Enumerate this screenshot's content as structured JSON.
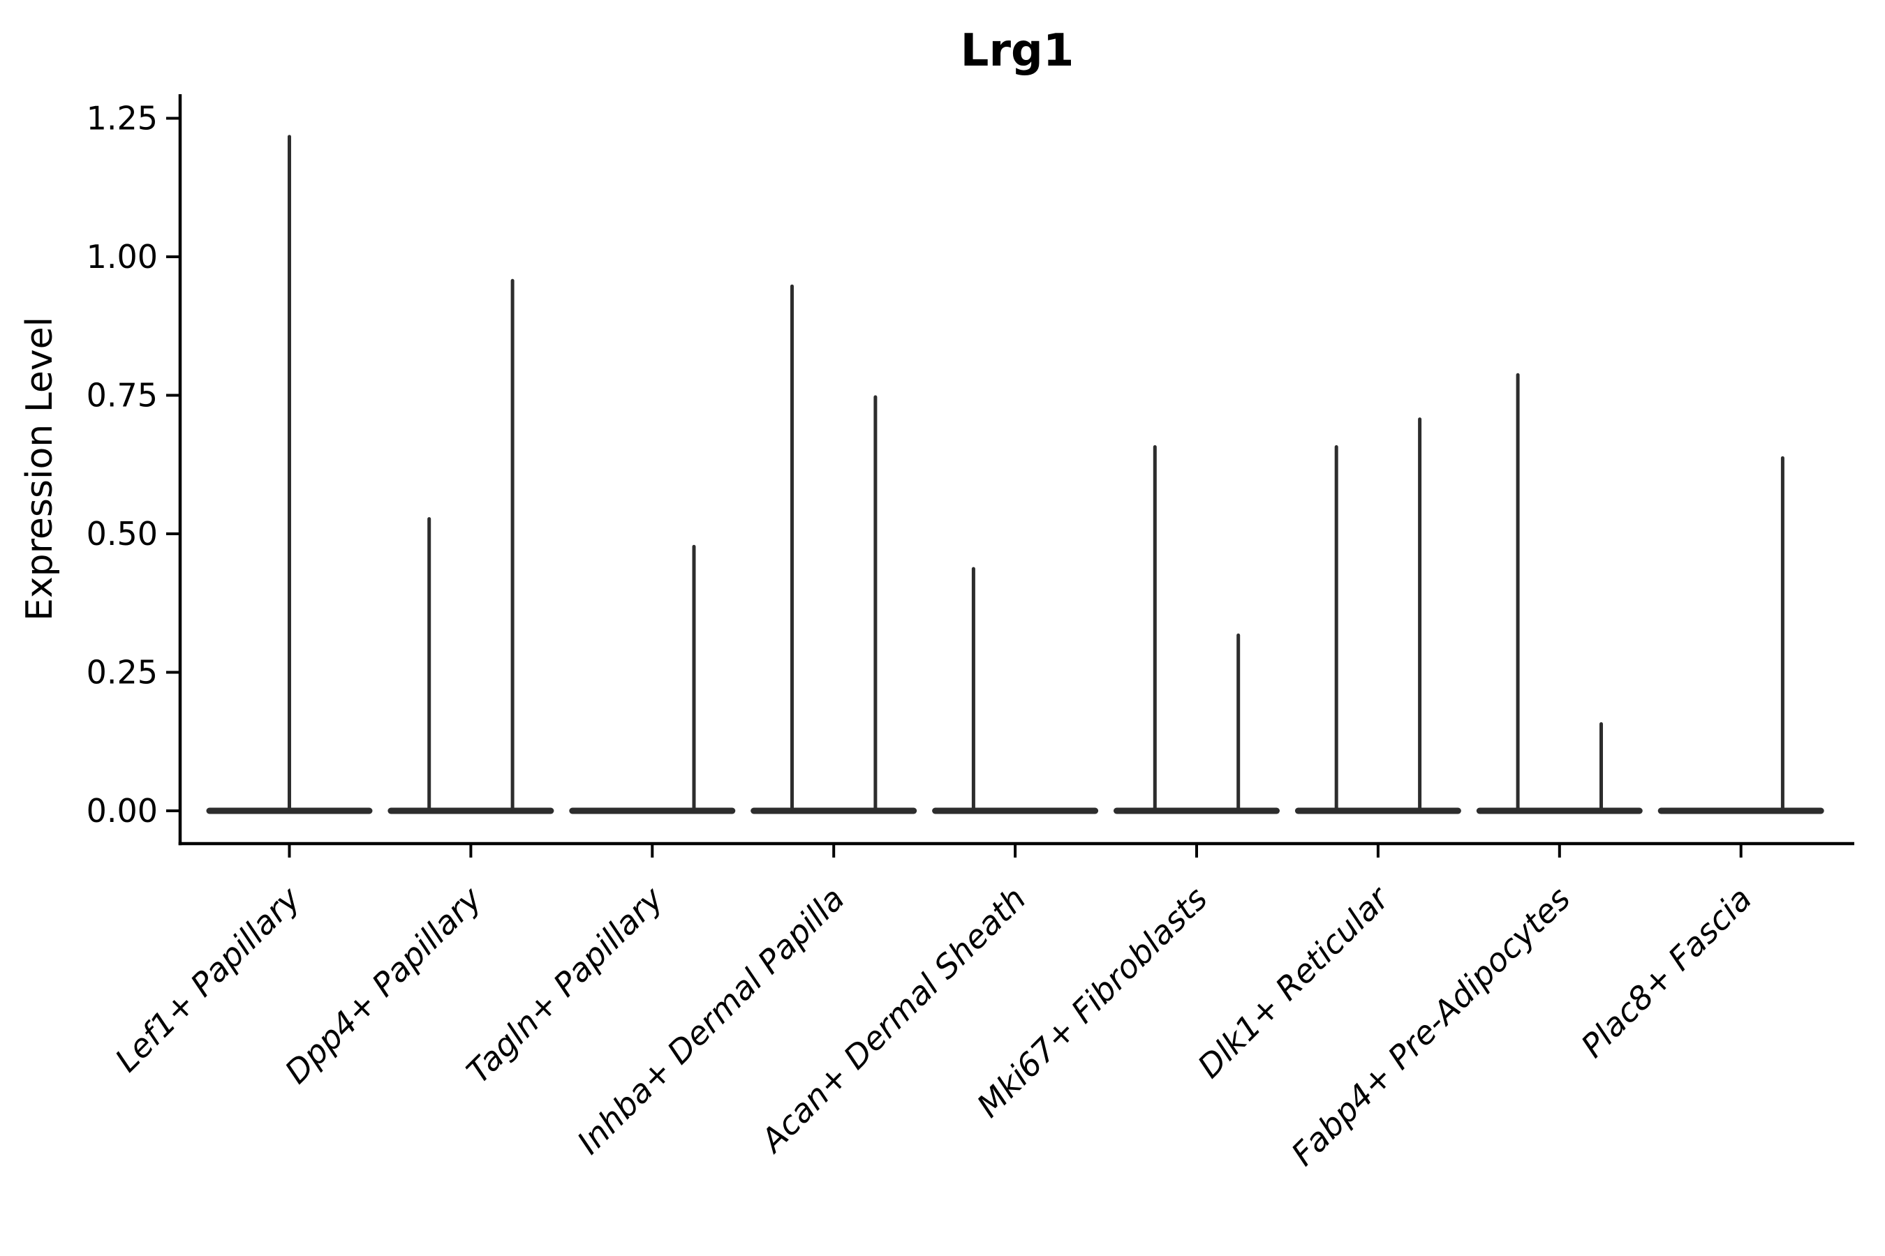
{
  "chart_data": {
    "type": "violin",
    "title": "Lrg1",
    "xlabel": "",
    "ylabel": "Expression Level",
    "ylim": [
      -0.06,
      1.29
    ],
    "yticks": [
      0,
      0.25,
      0.5,
      0.75,
      1.0,
      1.25
    ],
    "ytick_labels": [
      "0.00",
      "0.25",
      "0.50",
      "0.75",
      "1.00",
      "1.25"
    ],
    "grid": false,
    "legend": "none",
    "background_color": "#ffffff",
    "axis_color": "#000000",
    "violin_color": "#2d2d2d",
    "categories": [
      "Lef1+ Papillary",
      "Dpp4+ Papillary",
      "Tagln+ Papillary",
      "Inhba+ Dermal Papilla",
      "Acan+ Dermal Sheath",
      "Mki67+ Fibroblasts",
      "Dlk1+ Reticular",
      "Fabp4+ Pre-Adipocytes",
      "Plac8+ Fascia"
    ],
    "violins": [
      {
        "category": "Lef1+ Papillary",
        "baseline": 0,
        "spikes": [
          {
            "pos": "center",
            "max": 1.22
          }
        ]
      },
      {
        "category": "Dpp4+ Papillary",
        "baseline": 0,
        "spikes": [
          {
            "pos": "left",
            "max": 0.53
          },
          {
            "pos": "right",
            "max": 0.96
          }
        ]
      },
      {
        "category": "Tagln+ Papillary",
        "baseline": 0,
        "spikes": [
          {
            "pos": "right",
            "max": 0.48
          }
        ]
      },
      {
        "category": "Inhba+ Dermal Papilla",
        "baseline": 0,
        "spikes": [
          {
            "pos": "left",
            "max": 0.95
          },
          {
            "pos": "right",
            "max": 0.75
          }
        ]
      },
      {
        "category": "Acan+ Dermal Sheath",
        "baseline": 0,
        "spikes": [
          {
            "pos": "left",
            "max": 0.44
          }
        ]
      },
      {
        "category": "Mki67+ Fibroblasts",
        "baseline": 0,
        "spikes": [
          {
            "pos": "left",
            "max": 0.66
          },
          {
            "pos": "right",
            "max": 0.32
          }
        ]
      },
      {
        "category": "Dlk1+ Reticular",
        "baseline": 0,
        "spikes": [
          {
            "pos": "left",
            "max": 0.66
          },
          {
            "pos": "right",
            "max": 0.71
          }
        ]
      },
      {
        "category": "Fabp4+ Pre-Adipocytes",
        "baseline": 0,
        "spikes": [
          {
            "pos": "left",
            "max": 0.79
          },
          {
            "pos": "right",
            "max": 0.16
          }
        ]
      },
      {
        "category": "Plac8+ Fascia",
        "baseline": 0,
        "spikes": [
          {
            "pos": "right",
            "max": 0.64
          }
        ]
      }
    ]
  }
}
